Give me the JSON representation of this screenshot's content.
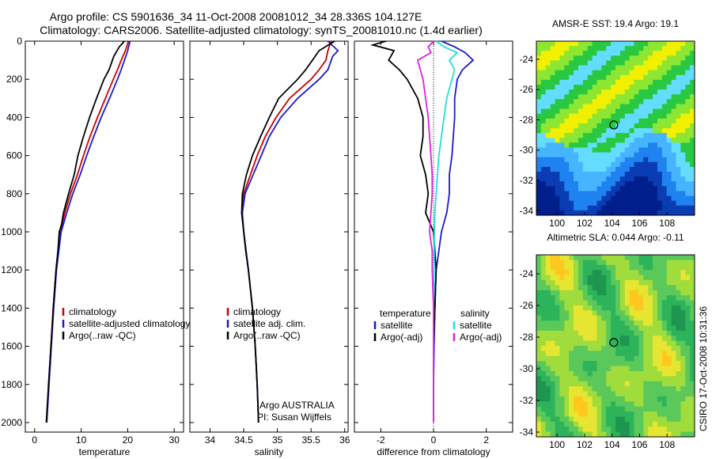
{
  "figure": {
    "title_line1": "Argo profile: CS 5901636_34 11-Oct-2008 20081012_34 28.336S 104.127E",
    "title_line2": "Climatology: CARS2006. Satellite-adjusted climatology: synTS_20081010.nc (1.4d earlier)",
    "side_label": "CSIRO 17-Oct-2008 10:31:36",
    "credit_line1": "Argo AUSTRALIA",
    "credit_line2": "PI: Susan Wijffels"
  },
  "colors": {
    "climatology": "#cc0000",
    "satellite": "#1a1acc",
    "argo": "#000000",
    "sal_satellite": "#22dddd",
    "sal_argo": "#dd22dd"
  },
  "chart_data": [
    {
      "type": "line",
      "id": "temperature",
      "xlabel": "temperature",
      "ylabel": "",
      "xlim": [
        -2,
        32
      ],
      "ylim": [
        2050,
        0
      ],
      "xticks": [
        0,
        10,
        20,
        30
      ],
      "yticks": [
        0,
        200,
        400,
        600,
        800,
        1000,
        1200,
        1400,
        1600,
        1800,
        2000
      ],
      "legend": [
        "climatology",
        "satellite-adjusted climatology",
        "Argo(..raw -QC)"
      ],
      "series": [
        {
          "name": "climatology",
          "color_key": "climatology",
          "depth": [
            0,
            50,
            100,
            150,
            200,
            300,
            400,
            500,
            600,
            700,
            800,
            900,
            1000,
            1200,
            1400,
            1600,
            1800,
            2000
          ],
          "values": [
            20.2,
            19.5,
            18.6,
            17.8,
            16.9,
            15.2,
            13.5,
            11.9,
            10.5,
            9.2,
            7.7,
            6.5,
            5.5,
            4.6,
            4.0,
            3.5,
            3.0,
            2.6
          ]
        },
        {
          "name": "satellite-adjusted climatology",
          "color_key": "satellite",
          "depth": [
            0,
            50,
            100,
            150,
            200,
            300,
            400,
            500,
            600,
            700,
            800,
            900,
            1000,
            1200,
            1400,
            1600,
            1800,
            2000
          ],
          "values": [
            20.5,
            20.0,
            19.3,
            18.6,
            17.8,
            16.1,
            14.3,
            12.7,
            11.2,
            9.8,
            8.2,
            6.9,
            5.7,
            4.7,
            4.1,
            3.6,
            3.1,
            2.6
          ]
        },
        {
          "name": "Argo(..raw -QC)",
          "color_key": "argo",
          "depth": [
            0,
            30,
            80,
            150,
            200,
            300,
            400,
            500,
            600,
            700,
            800,
            900,
            960,
            1000,
            1100,
            1200,
            1400,
            1600,
            1800,
            2000
          ],
          "values": [
            19.3,
            18.2,
            17.0,
            16.0,
            14.9,
            13.3,
            11.8,
            10.5,
            9.3,
            8.5,
            7.3,
            6.2,
            5.8,
            5.3,
            5.0,
            4.6,
            4.0,
            3.5,
            3.0,
            2.5
          ]
        }
      ]
    },
    {
      "type": "line",
      "id": "salinity",
      "xlabel": "salinity",
      "ylabel": "",
      "xlim": [
        33.7,
        36.05
      ],
      "ylim": [
        2050,
        0
      ],
      "xticks": [
        34,
        34.5,
        35,
        35.5,
        36
      ],
      "yticks": [
        0,
        200,
        400,
        600,
        800,
        1000,
        1200,
        1400,
        1600,
        1800,
        2000
      ],
      "legend": [
        "climatology",
        "satellite adj. clim.",
        "Argo(..raw -QC)"
      ],
      "series": [
        {
          "name": "climatology",
          "color_key": "climatology",
          "depth": [
            0,
            50,
            100,
            150,
            200,
            300,
            400,
            500,
            600,
            700,
            800,
            900,
            1000,
            1200,
            1400,
            1600,
            1800,
            2000
          ],
          "values": [
            35.8,
            35.75,
            35.72,
            35.62,
            35.5,
            35.18,
            34.98,
            34.82,
            34.7,
            34.6,
            34.5,
            34.47,
            34.5,
            34.57,
            34.63,
            34.67,
            34.7,
            34.72
          ]
        },
        {
          "name": "satellite adj. clim.",
          "color_key": "satellite",
          "depth": [
            0,
            50,
            80,
            150,
            200,
            300,
            400,
            500,
            600,
            700,
            800,
            900,
            1000,
            1200,
            1400,
            1600,
            1800,
            2000
          ],
          "values": [
            35.75,
            35.9,
            35.82,
            35.75,
            35.62,
            35.3,
            35.05,
            34.88,
            34.76,
            34.64,
            34.52,
            34.48,
            34.5,
            34.57,
            34.63,
            34.67,
            34.7,
            34.72
          ]
        },
        {
          "name": "Argo(..raw -QC)",
          "color_key": "argo",
          "depth": [
            0,
            50,
            100,
            150,
            200,
            300,
            400,
            500,
            600,
            700,
            800,
            900,
            1000,
            1100,
            1200,
            1400,
            1600,
            1800,
            2000
          ],
          "values": [
            35.85,
            35.62,
            35.52,
            35.42,
            35.3,
            35.02,
            34.88,
            34.75,
            34.63,
            34.54,
            34.48,
            34.47,
            34.5,
            34.53,
            34.57,
            34.63,
            34.67,
            34.7,
            34.72
          ]
        }
      ]
    },
    {
      "type": "line",
      "id": "difference",
      "xlabel": "difference from climatology",
      "ylabel": "",
      "xlim": [
        -3,
        3
      ],
      "ylim": [
        2050,
        0
      ],
      "xticks": [
        -2,
        0,
        2
      ],
      "yticks": [
        0,
        200,
        400,
        600,
        800,
        1000,
        1200,
        1400,
        1600,
        1800,
        2000
      ],
      "legend_left_title": "temperature",
      "legend_right_title": "salinity",
      "legend_left": [
        "satellite",
        "Argo(-adj)"
      ],
      "legend_right": [
        "satellite",
        "Argo(-adj)"
      ],
      "series": [
        {
          "name": "temperature satellite",
          "color_key": "satellite",
          "depth": [
            0,
            30,
            60,
            100,
            150,
            200,
            300,
            400,
            500,
            600,
            700,
            800,
            900,
            1000,
            1100,
            1200,
            1400,
            1600,
            1800,
            2000
          ],
          "values": [
            0.3,
            0.8,
            1.2,
            1.5,
            1.1,
            0.9,
            0.8,
            0.8,
            0.75,
            0.7,
            0.6,
            0.6,
            0.5,
            0.3,
            0.2,
            0.1,
            0.05,
            0.02,
            0.0,
            0.0
          ]
        },
        {
          "name": "temperature Argo(-adj)",
          "color_key": "argo",
          "depth": [
            0,
            20,
            50,
            100,
            150,
            200,
            300,
            400,
            500,
            600,
            700,
            800,
            900,
            1000,
            1100,
            1200,
            1400,
            1600,
            1800,
            2000
          ],
          "values": [
            -1.8,
            -2.3,
            -1.5,
            -1.7,
            -1.3,
            -1.0,
            -0.6,
            -0.4,
            -0.4,
            -0.5,
            -0.3,
            -0.2,
            -0.3,
            0.0,
            0.05,
            0.1,
            0.05,
            0.0,
            0.0,
            0.0
          ]
        },
        {
          "name": "salinity satellite",
          "color_key": "sal_satellite",
          "depth": [
            0,
            30,
            60,
            100,
            150,
            200,
            300,
            400,
            500,
            600,
            700,
            800,
            900,
            1000,
            1200,
            1400,
            1600,
            1800,
            2000
          ],
          "values": [
            0.1,
            0.4,
            0.9,
            0.6,
            0.8,
            0.7,
            0.5,
            0.4,
            0.3,
            0.2,
            0.15,
            0.1,
            0.05,
            0.03,
            0.02,
            0.0,
            0.0,
            0.0,
            0.0
          ]
        },
        {
          "name": "salinity Argo(-adj)",
          "color_key": "sal_argo",
          "depth": [
            0,
            30,
            60,
            100,
            150,
            200,
            300,
            400,
            500,
            600,
            700,
            800,
            900,
            1000,
            1100,
            1200,
            1400,
            1600,
            1800,
            2000
          ],
          "values": [
            0.0,
            -0.2,
            -0.1,
            -0.6,
            -0.5,
            -0.4,
            -0.3,
            -0.2,
            -0.15,
            -0.1,
            -0.05,
            -0.05,
            -0.1,
            -0.15,
            -0.05,
            -0.05,
            0.0,
            0.0,
            0.0,
            0.0
          ]
        }
      ]
    },
    {
      "type": "heatmap",
      "id": "sst-map",
      "title": "AMSR-E SST: 19.4 Argo: 19.1",
      "xlim": [
        98.5,
        110
      ],
      "ylim": [
        -34.3,
        -22.8
      ],
      "xticks": [
        100,
        102,
        104,
        106,
        108
      ],
      "yticks": [
        -24,
        -26,
        -28,
        -30,
        -32,
        -34
      ],
      "marker": {
        "lon": 104.127,
        "lat": -28.336
      },
      "palette": [
        "#001e8c",
        "#0a3cb4",
        "#1e82f0",
        "#46b4ff",
        "#64dcff",
        "#28c840",
        "#8ce632",
        "#f0f000"
      ]
    },
    {
      "type": "heatmap",
      "id": "sla-map",
      "title": "Altimetric SLA: 0.044 Argo: -0.11",
      "xlim": [
        98.5,
        110
      ],
      "ylim": [
        -34.3,
        -22.8
      ],
      "xticks": [
        100,
        102,
        104,
        106,
        108
      ],
      "yticks": [
        -24,
        -26,
        -28,
        -30,
        -32,
        -34
      ],
      "marker": {
        "lon": 104.127,
        "lat": -28.336
      },
      "palette": [
        "#1e9650",
        "#2db45a",
        "#5ac85a",
        "#a0dc3c",
        "#e6e632",
        "#ffc81e",
        "#ff961e"
      ]
    }
  ]
}
